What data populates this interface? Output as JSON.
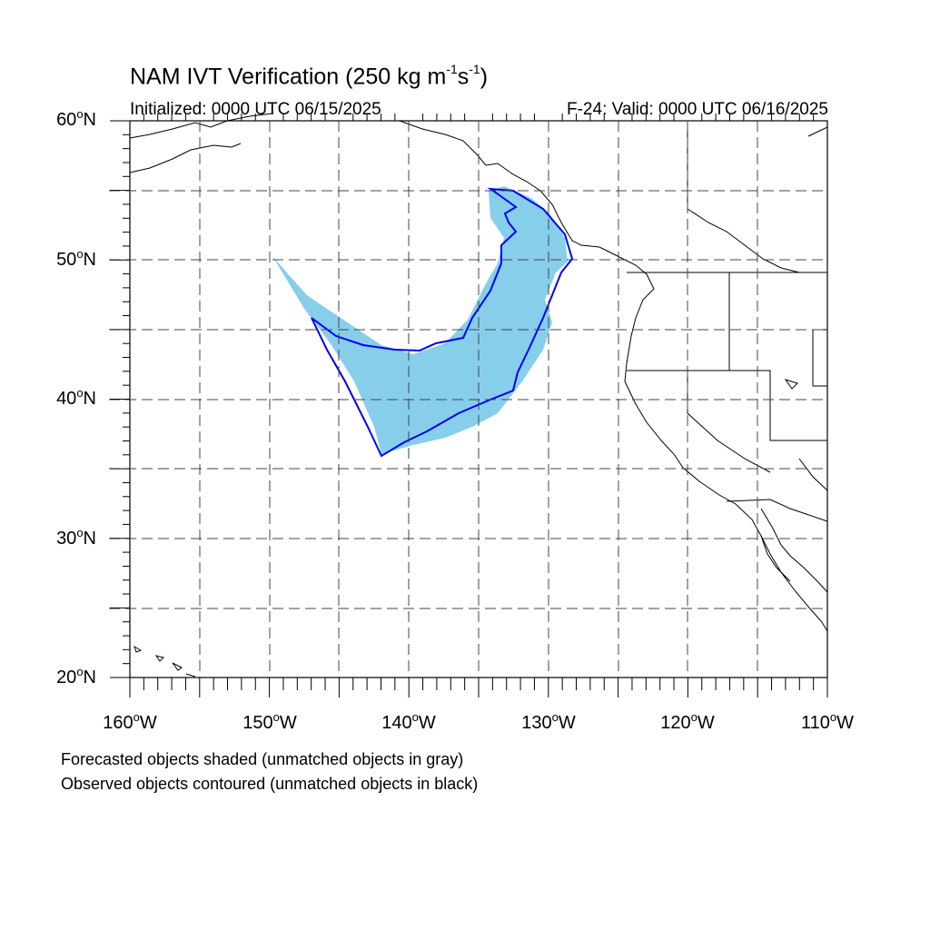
{
  "title_main": "NAM IVT Verification (250 kg m",
  "title_sup1": "-1",
  "title_mid": "s",
  "title_sup2": "-1",
  "title_end": ")",
  "init_text": "Initialized: 0000 UTC 06/15/2025",
  "valid_text": "F-24: Valid: 0000 UTC 06/16/2025",
  "lat_labels": [
    {
      "value": "60",
      "suffix": "N"
    },
    {
      "value": "50",
      "suffix": "N"
    },
    {
      "value": "40",
      "suffix": "N"
    },
    {
      "value": "30",
      "suffix": "N"
    },
    {
      "value": "20",
      "suffix": "N"
    }
  ],
  "lon_labels": [
    {
      "value": "160",
      "suffix": "W"
    },
    {
      "value": "150",
      "suffix": "W"
    },
    {
      "value": "140",
      "suffix": "W"
    },
    {
      "value": "130",
      "suffix": "W"
    },
    {
      "value": "120",
      "suffix": "W"
    },
    {
      "value": "110",
      "suffix": "W"
    }
  ],
  "footnote_1": "Forecasted objects shaded (unmatched objects in gray)",
  "footnote_2": "Observed objects contoured (unmatched objects in black)",
  "colors": {
    "forecast_fill": "#87ceeb",
    "observed_contour": "#0000ee",
    "coastline": "#000000",
    "grid": "#555555"
  },
  "map_extent": {
    "lon_min": -160,
    "lon_max": -110,
    "lat_min": 20,
    "lat_max": 60
  }
}
